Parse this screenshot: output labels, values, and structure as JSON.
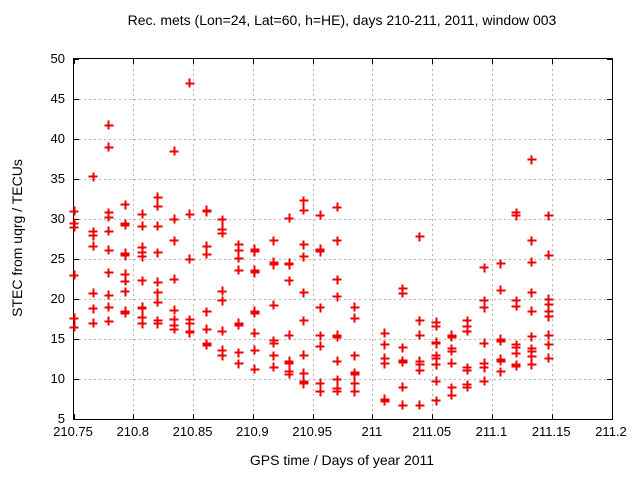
{
  "chart_data": {
    "type": "scatter",
    "title": "Rec. mets (Lon=24, Lat=60, h=HE), days 210-211, 2011, window 003",
    "xlabel": "GPS time / Days of year 2011",
    "ylabel": "STEC from uqrg / TECUs",
    "xlim": [
      210.75,
      211.2
    ],
    "ylim": [
      5,
      50
    ],
    "xticks": [
      210.75,
      210.8,
      210.85,
      210.9,
      210.95,
      211.0,
      211.05,
      211.1,
      211.15,
      211.2
    ],
    "xtick_labels": [
      "210.75",
      "210.8",
      "210.85",
      "210.9",
      "210.95",
      "211",
      "211.05",
      "211.1",
      "211.15",
      "211.2"
    ],
    "yticks": [
      5,
      10,
      15,
      20,
      25,
      30,
      35,
      40,
      45,
      50
    ],
    "ytick_labels": [
      "5",
      "10",
      "15",
      "20",
      "25",
      "30",
      "35",
      "40",
      "45",
      "50"
    ],
    "grid": true,
    "grid_style": "dotted",
    "grid_color": "#b4b4b4",
    "legend": "none",
    "marker": "plus",
    "marker_color": "#ee0000",
    "series": [
      {
        "name": "STEC",
        "points": [
          [
            210.75,
            31.0
          ],
          [
            210.75,
            29.5
          ],
          [
            210.75,
            29.0
          ],
          [
            210.75,
            23.0
          ],
          [
            210.75,
            17.6
          ],
          [
            210.75,
            16.5
          ],
          [
            210.766,
            35.3
          ],
          [
            210.766,
            28.4
          ],
          [
            210.766,
            27.9
          ],
          [
            210.766,
            26.6
          ],
          [
            210.766,
            20.7
          ],
          [
            210.766,
            18.8
          ],
          [
            210.766,
            17.0
          ],
          [
            210.779,
            41.7
          ],
          [
            210.779,
            39.0
          ],
          [
            210.779,
            30.8
          ],
          [
            210.779,
            30.2
          ],
          [
            210.779,
            28.5
          ],
          [
            210.779,
            26.1
          ],
          [
            210.779,
            23.3
          ],
          [
            210.779,
            20.5
          ],
          [
            210.779,
            19.0
          ],
          [
            210.779,
            17.2
          ],
          [
            210.793,
            31.8
          ],
          [
            210.793,
            29.4
          ],
          [
            210.793,
            29.2
          ],
          [
            210.793,
            25.7
          ],
          [
            210.793,
            25.4
          ],
          [
            210.793,
            23.1
          ],
          [
            210.793,
            22.2
          ],
          [
            210.793,
            20.9
          ],
          [
            210.793,
            18.5
          ],
          [
            210.793,
            18.2
          ],
          [
            210.807,
            30.6
          ],
          [
            210.807,
            29.1
          ],
          [
            210.807,
            26.5
          ],
          [
            210.807,
            25.8
          ],
          [
            210.807,
            25.3
          ],
          [
            210.807,
            22.3
          ],
          [
            210.807,
            19.0
          ],
          [
            210.807,
            18.8
          ],
          [
            210.807,
            17.7
          ],
          [
            210.807,
            16.9
          ],
          [
            210.82,
            32.7
          ],
          [
            210.82,
            31.6
          ],
          [
            210.82,
            29.1
          ],
          [
            210.82,
            25.8
          ],
          [
            210.82,
            22.1
          ],
          [
            210.82,
            20.8
          ],
          [
            210.82,
            19.6
          ],
          [
            210.82,
            17.3
          ],
          [
            210.82,
            16.9
          ],
          [
            210.834,
            38.5
          ],
          [
            210.834,
            30.0
          ],
          [
            210.834,
            27.3
          ],
          [
            210.834,
            22.5
          ],
          [
            210.834,
            18.6
          ],
          [
            210.834,
            17.4
          ],
          [
            210.834,
            16.7
          ],
          [
            210.834,
            16.2
          ],
          [
            210.847,
            47.0
          ],
          [
            210.847,
            30.6
          ],
          [
            210.847,
            25.0
          ],
          [
            210.847,
            17.4
          ],
          [
            210.847,
            16.9
          ],
          [
            210.847,
            16.0
          ],
          [
            210.847,
            15.8
          ],
          [
            210.861,
            31.1
          ],
          [
            210.861,
            30.9
          ],
          [
            210.861,
            26.6
          ],
          [
            210.861,
            25.6
          ],
          [
            210.861,
            18.4
          ],
          [
            210.861,
            16.2
          ],
          [
            210.861,
            14.4
          ],
          [
            210.861,
            14.2
          ],
          [
            210.874,
            29.9
          ],
          [
            210.874,
            28.7
          ],
          [
            210.874,
            28.2
          ],
          [
            210.874,
            21.0
          ],
          [
            210.874,
            19.8
          ],
          [
            210.874,
            16.0
          ],
          [
            210.874,
            13.6
          ],
          [
            210.874,
            12.9
          ],
          [
            210.888,
            26.8
          ],
          [
            210.888,
            26.1
          ],
          [
            210.888,
            25.1
          ],
          [
            210.888,
            23.6
          ],
          [
            210.888,
            17.0
          ],
          [
            210.888,
            16.7
          ],
          [
            210.888,
            13.3
          ],
          [
            210.888,
            11.9
          ],
          [
            210.901,
            26.2
          ],
          [
            210.901,
            25.9
          ],
          [
            210.901,
            23.6
          ],
          [
            210.901,
            23.3
          ],
          [
            210.901,
            18.5
          ],
          [
            210.901,
            18.2
          ],
          [
            210.901,
            15.7
          ],
          [
            210.901,
            13.6
          ],
          [
            210.901,
            11.2
          ],
          [
            210.917,
            27.3
          ],
          [
            210.917,
            24.6
          ],
          [
            210.917,
            24.3
          ],
          [
            210.917,
            19.2
          ],
          [
            210.917,
            14.8
          ],
          [
            210.917,
            14.5
          ],
          [
            210.917,
            12.9
          ],
          [
            210.917,
            11.5
          ],
          [
            210.93,
            30.1
          ],
          [
            210.93,
            24.5
          ],
          [
            210.93,
            24.3
          ],
          [
            210.93,
            22.3
          ],
          [
            210.93,
            15.5
          ],
          [
            210.93,
            12.2
          ],
          [
            210.93,
            11.9
          ],
          [
            210.93,
            10.9
          ],
          [
            210.93,
            10.6
          ],
          [
            210.942,
            32.3
          ],
          [
            210.942,
            31.1
          ],
          [
            210.942,
            26.8
          ],
          [
            210.942,
            25.3
          ],
          [
            210.942,
            20.8
          ],
          [
            210.942,
            17.3
          ],
          [
            210.942,
            13.0
          ],
          [
            210.942,
            10.7
          ],
          [
            210.942,
            9.7
          ],
          [
            210.942,
            9.4
          ],
          [
            210.956,
            30.5
          ],
          [
            210.956,
            26.2
          ],
          [
            210.956,
            25.9
          ],
          [
            210.956,
            18.9
          ],
          [
            210.956,
            15.4
          ],
          [
            210.956,
            14.1
          ],
          [
            210.956,
            9.5
          ],
          [
            210.956,
            8.4
          ],
          [
            210.97,
            31.5
          ],
          [
            210.97,
            27.3
          ],
          [
            210.97,
            22.4
          ],
          [
            210.97,
            20.3
          ],
          [
            210.97,
            15.5
          ],
          [
            210.97,
            15.2
          ],
          [
            210.97,
            12.2
          ],
          [
            210.97,
            9.9
          ],
          [
            210.97,
            8.8
          ],
          [
            210.97,
            8.5
          ],
          [
            210.985,
            19.0
          ],
          [
            210.985,
            17.6
          ],
          [
            210.985,
            12.9
          ],
          [
            210.985,
            10.8
          ],
          [
            210.985,
            10.6
          ],
          [
            210.985,
            9.5
          ],
          [
            210.985,
            8.4
          ],
          [
            211.01,
            15.7
          ],
          [
            211.01,
            14.3
          ],
          [
            211.01,
            12.6
          ],
          [
            211.01,
            11.9
          ],
          [
            211.01,
            7.5
          ],
          [
            211.01,
            7.2
          ],
          [
            211.025,
            21.3
          ],
          [
            211.025,
            20.7
          ],
          [
            211.025,
            13.9
          ],
          [
            211.025,
            12.3
          ],
          [
            211.025,
            12.1
          ],
          [
            211.025,
            9.0
          ],
          [
            211.025,
            6.7
          ],
          [
            211.039,
            27.8
          ],
          [
            211.039,
            17.3
          ],
          [
            211.039,
            15.5
          ],
          [
            211.039,
            12.2
          ],
          [
            211.039,
            11.8
          ],
          [
            211.039,
            11.1
          ],
          [
            211.039,
            6.7
          ],
          [
            211.053,
            17.1
          ],
          [
            211.053,
            16.6
          ],
          [
            211.053,
            14.6
          ],
          [
            211.053,
            14.4
          ],
          [
            211.053,
            12.9
          ],
          [
            211.053,
            12.6
          ],
          [
            211.053,
            11.8
          ],
          [
            211.053,
            9.7
          ],
          [
            211.053,
            7.3
          ],
          [
            211.066,
            15.5
          ],
          [
            211.066,
            15.2
          ],
          [
            211.066,
            13.8
          ],
          [
            211.066,
            13.5
          ],
          [
            211.066,
            12.0
          ],
          [
            211.066,
            8.9
          ],
          [
            211.066,
            8.0
          ],
          [
            211.079,
            17.3
          ],
          [
            211.079,
            16.6
          ],
          [
            211.079,
            16.0
          ],
          [
            211.079,
            11.4
          ],
          [
            211.079,
            11.1
          ],
          [
            211.079,
            9.3
          ],
          [
            211.079,
            9.0
          ],
          [
            211.093,
            23.9
          ],
          [
            211.093,
            19.8
          ],
          [
            211.093,
            18.9
          ],
          [
            211.093,
            14.5
          ],
          [
            211.093,
            12.0
          ],
          [
            211.093,
            11.4
          ],
          [
            211.093,
            9.7
          ],
          [
            211.107,
            24.4
          ],
          [
            211.107,
            21.1
          ],
          [
            211.107,
            15.0
          ],
          [
            211.107,
            14.7
          ],
          [
            211.107,
            12.5
          ],
          [
            211.107,
            12.2
          ],
          [
            211.107,
            10.9
          ],
          [
            211.12,
            30.8
          ],
          [
            211.12,
            30.4
          ],
          [
            211.12,
            19.8
          ],
          [
            211.12,
            19.1
          ],
          [
            211.12,
            14.3
          ],
          [
            211.12,
            14.0
          ],
          [
            211.12,
            13.2
          ],
          [
            211.12,
            11.8
          ],
          [
            211.12,
            11.6
          ],
          [
            211.133,
            37.4
          ],
          [
            211.133,
            27.3
          ],
          [
            211.133,
            24.6
          ],
          [
            211.133,
            20.8
          ],
          [
            211.133,
            18.5
          ],
          [
            211.133,
            15.3
          ],
          [
            211.133,
            13.8
          ],
          [
            211.133,
            13.5
          ],
          [
            211.133,
            12.8
          ],
          [
            211.133,
            11.8
          ],
          [
            211.147,
            30.4
          ],
          [
            211.147,
            25.5
          ],
          [
            211.147,
            20.0
          ],
          [
            211.147,
            19.3
          ],
          [
            211.147,
            18.5
          ],
          [
            211.147,
            17.8
          ],
          [
            211.147,
            15.5
          ],
          [
            211.147,
            14.3
          ],
          [
            211.147,
            12.6
          ]
        ]
      }
    ]
  }
}
